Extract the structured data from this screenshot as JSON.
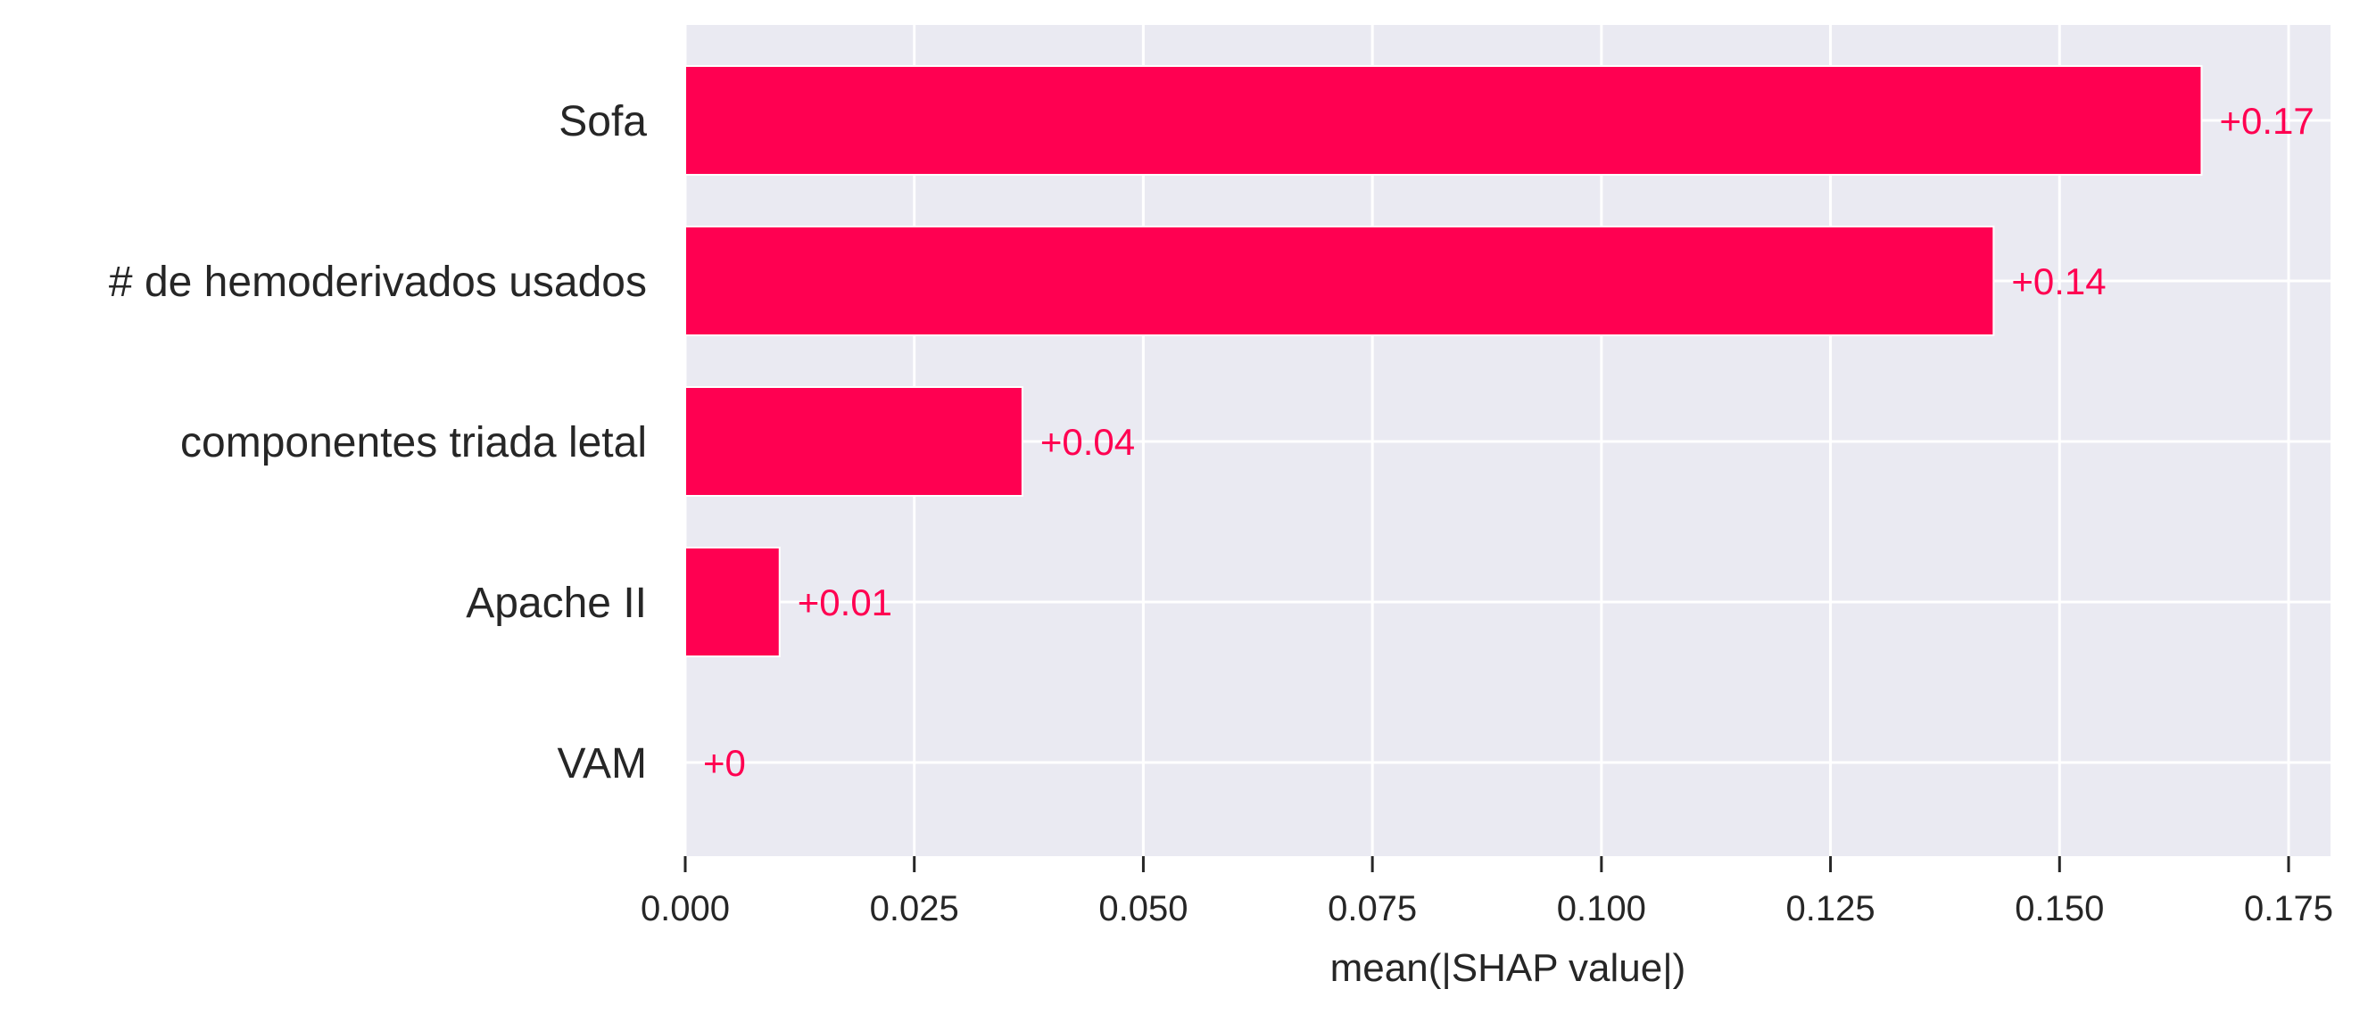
{
  "chart_data": {
    "type": "bar",
    "orientation": "horizontal",
    "categories": [
      "Sofa",
      "# de hemoderivados  usados",
      "componentes triada letal",
      "Apache II",
      "VAM"
    ],
    "values": [
      0.1655,
      0.1428,
      0.0368,
      0.0103,
      0.0
    ],
    "value_labels": [
      "+0.17",
      "+0.14",
      "+0.04",
      "+0.01",
      "+0"
    ],
    "xlabel": "mean(|SHAP value|)",
    "ylabel": "",
    "xlim": [
      0,
      0.18
    ],
    "xticks": [
      0.0,
      0.025,
      0.05,
      0.075,
      0.1,
      0.125,
      0.15,
      0.175
    ],
    "xtick_labels": [
      "0.000",
      "0.025",
      "0.050",
      "0.075",
      "0.100",
      "0.125",
      "0.150",
      "0.175"
    ],
    "grid": true,
    "colors": {
      "bar": "#ff0051",
      "background": "#eaeaf2",
      "grid": "#ffffff",
      "text": "#262626"
    }
  }
}
